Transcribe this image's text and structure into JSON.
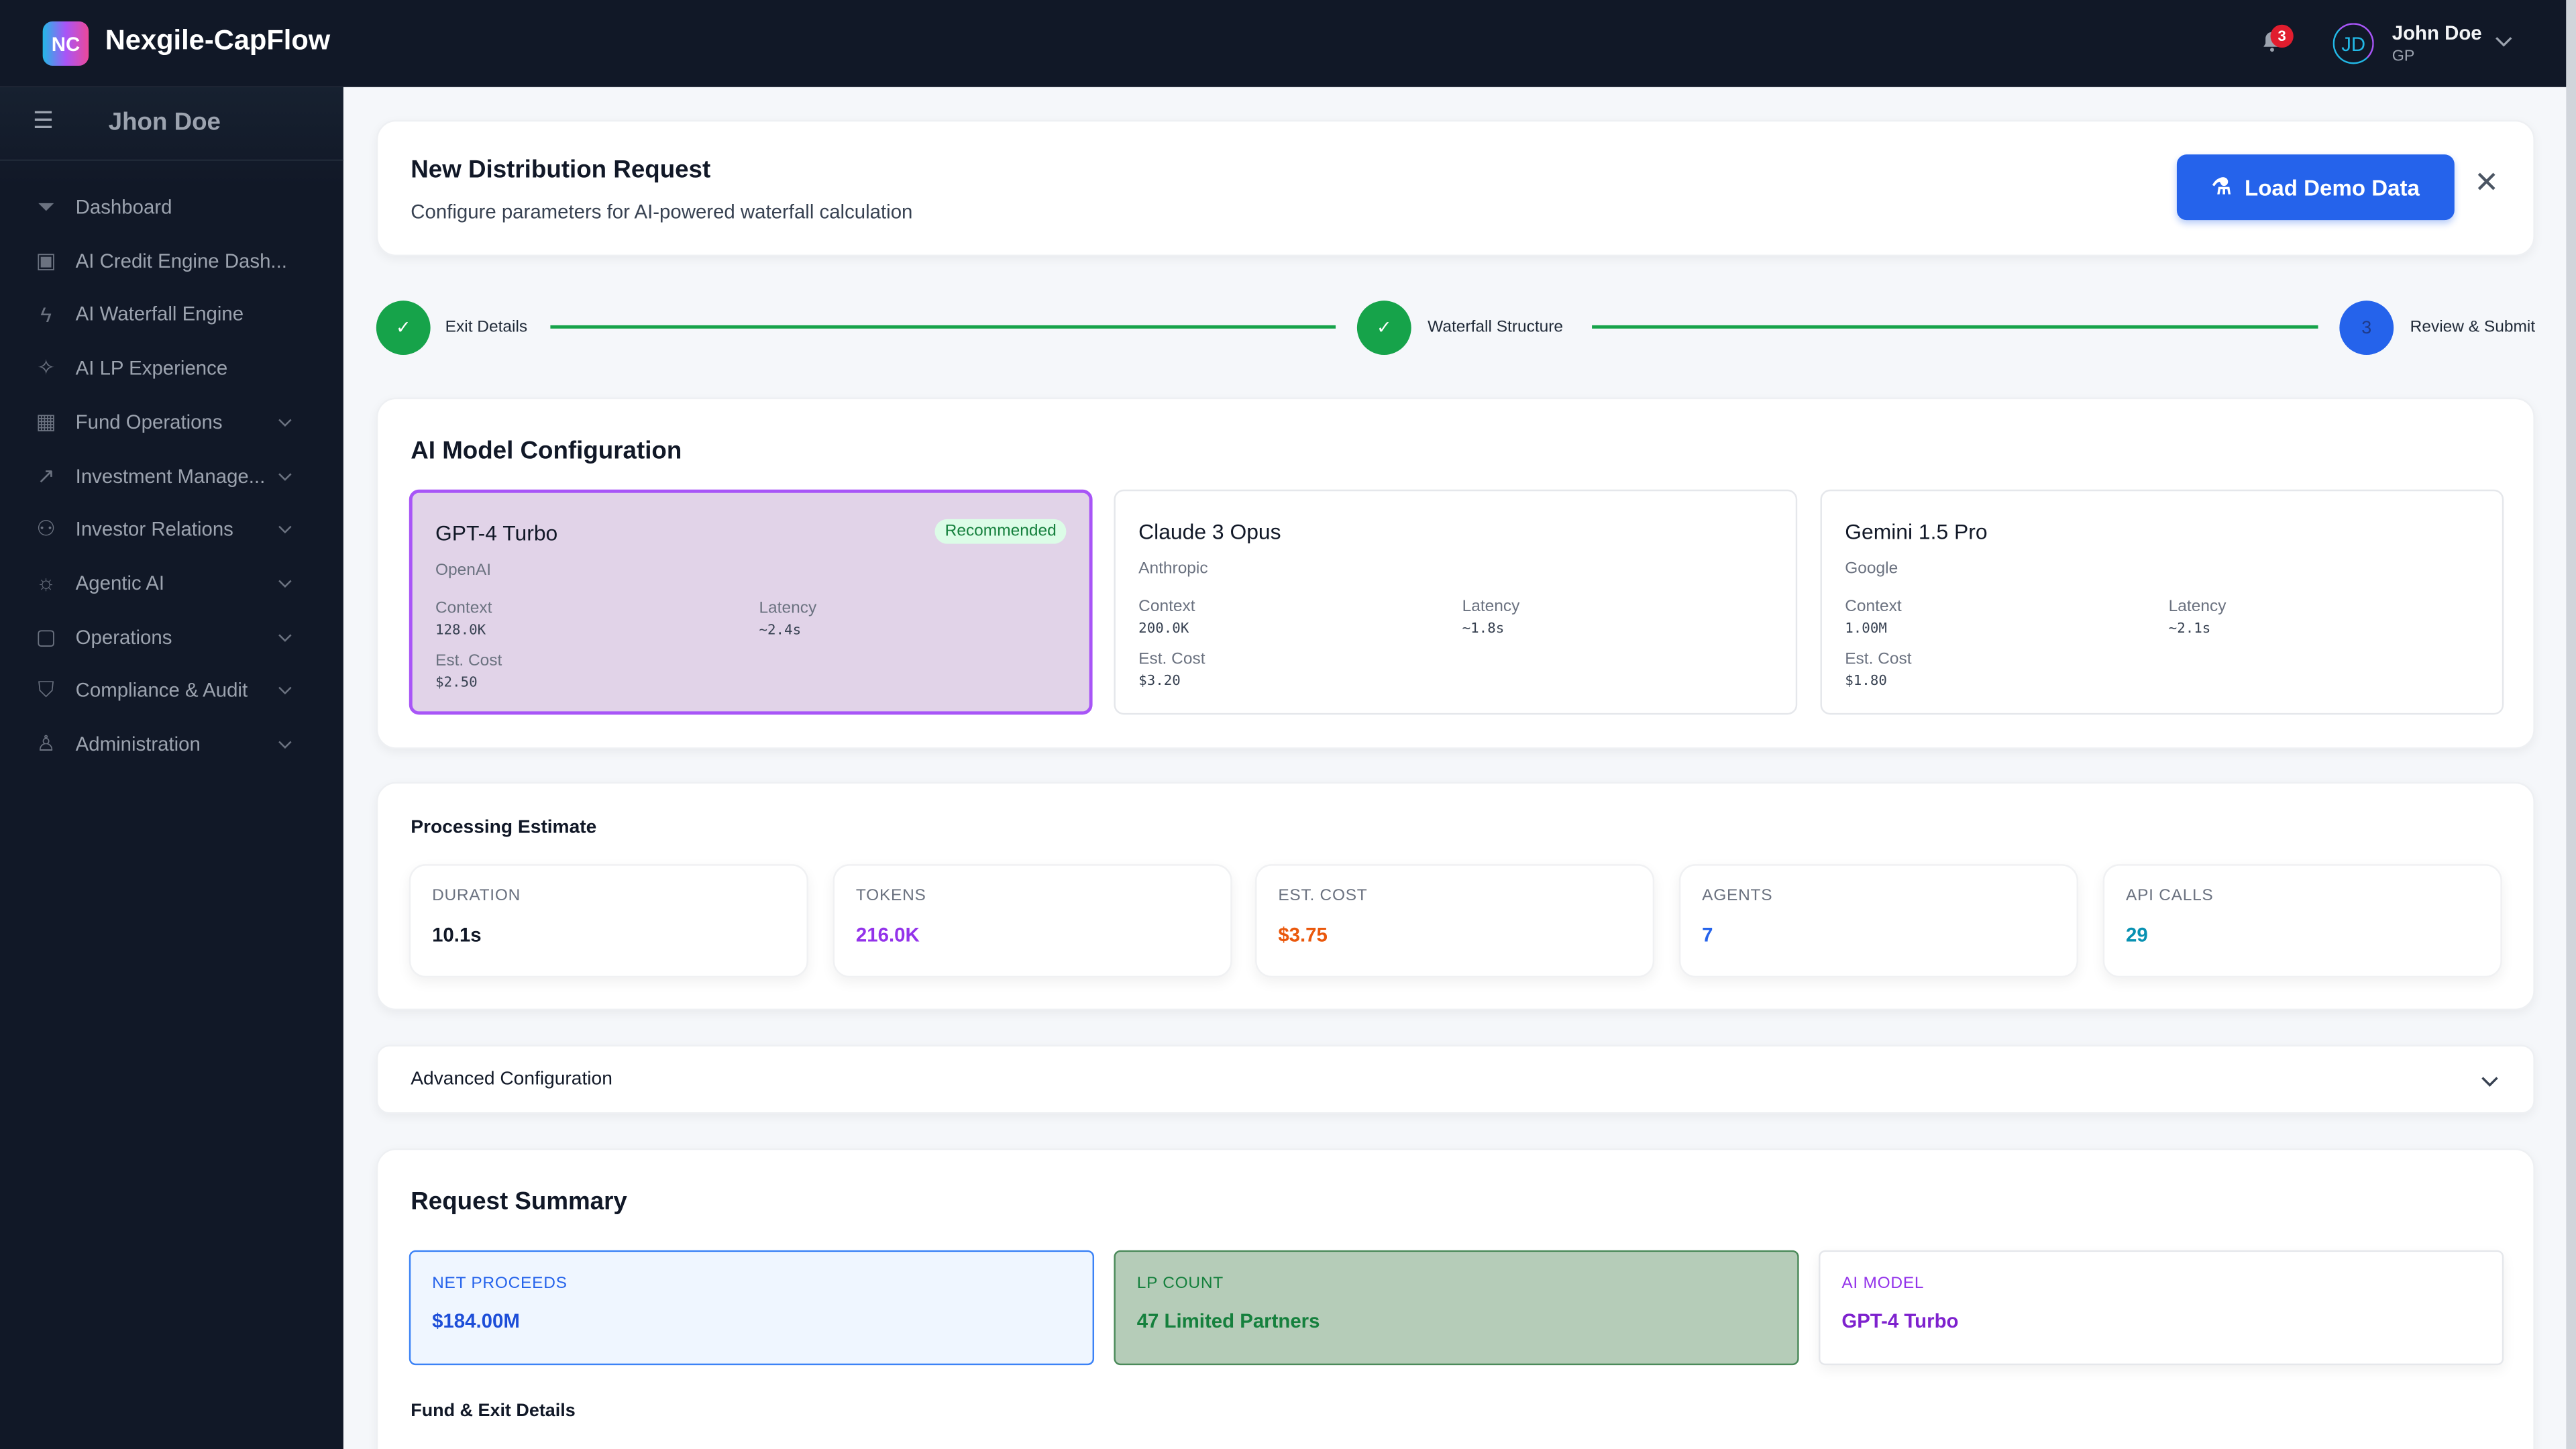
{
  "app": {
    "logo": "NC",
    "title": "Nexgile-CapFlow"
  },
  "topbar": {
    "notifications": "3",
    "avatar_initials": "JD",
    "user_name": "John Doe",
    "user_role": "GP"
  },
  "sidebar": {
    "user": "Jhon Doe",
    "items": [
      {
        "label": "Dashboard",
        "icon": "funnel-icon",
        "glyph": "⏷",
        "expandable": false
      },
      {
        "label": "AI Credit Engine Dash...",
        "icon": "cpu-icon",
        "glyph": "▣",
        "expandable": false
      },
      {
        "label": "AI Waterfall Engine",
        "icon": "bolt-icon",
        "glyph": "ϟ",
        "expandable": false
      },
      {
        "label": "AI LP Experience",
        "icon": "sparkles-icon",
        "glyph": "✧",
        "expandable": false
      },
      {
        "label": "Fund Operations",
        "icon": "calculator-icon",
        "glyph": "▦",
        "expandable": true
      },
      {
        "label": "Investment Manage...",
        "icon": "trending-up-icon",
        "glyph": "↗",
        "expandable": true
      },
      {
        "label": "Investor Relations",
        "icon": "users-icon",
        "glyph": "⚇",
        "expandable": true
      },
      {
        "label": "Agentic AI",
        "icon": "lightbulb-icon",
        "glyph": "☼",
        "expandable": true
      },
      {
        "label": "Operations",
        "icon": "folder-icon",
        "glyph": "▢",
        "expandable": true
      },
      {
        "label": "Compliance & Audit",
        "icon": "shield-check-icon",
        "glyph": "⛉",
        "expandable": true
      },
      {
        "label": "Administration",
        "icon": "user-group-icon",
        "glyph": "♙",
        "expandable": true
      }
    ]
  },
  "header": {
    "title": "New Distribution Request",
    "subtitle": "Configure parameters for AI-powered waterfall calculation",
    "load_demo": "Load Demo Data"
  },
  "stepper": [
    {
      "label": "Exit Details",
      "status": "complete",
      "mark": "✓"
    },
    {
      "label": "Waterfall Structure",
      "status": "complete",
      "mark": "✓"
    },
    {
      "label": "Review & Submit",
      "status": "current",
      "mark": "3"
    }
  ],
  "model_config": {
    "title": "AI Model Configuration",
    "context_label": "Context",
    "latency_label": "Latency",
    "cost_label": "Est. Cost",
    "models": [
      {
        "name": "GPT-4 Turbo",
        "provider": "OpenAI",
        "context": "128.0K",
        "latency": "~2.4s",
        "cost": "$2.50",
        "badge": "Recommended",
        "selected": true
      },
      {
        "name": "Claude 3 Opus",
        "provider": "Anthropic",
        "context": "200.0K",
        "latency": "~1.8s",
        "cost": "$3.20",
        "selected": false
      },
      {
        "name": "Gemini 1.5 Pro",
        "provider": "Google",
        "context": "1.00M",
        "latency": "~2.1s",
        "cost": "$1.80",
        "selected": false
      }
    ]
  },
  "estimate": {
    "title": "Processing Estimate",
    "stats": [
      {
        "label": "DURATION",
        "value": "10.1s",
        "color": "#111827"
      },
      {
        "label": "TOKENS",
        "value": "216.0K",
        "color": "#9333ea"
      },
      {
        "label": "EST. COST",
        "value": "$3.75",
        "color": "#ea580c"
      },
      {
        "label": "AGENTS",
        "value": "7",
        "color": "#2563eb"
      },
      {
        "label": "API CALLS",
        "value": "29",
        "color": "#0891b2"
      }
    ]
  },
  "advanced": {
    "title": "Advanced Configuration"
  },
  "summary": {
    "title": "Request Summary",
    "boxes": [
      {
        "label": "NET PROCEEDS",
        "value": "$184.00M"
      },
      {
        "label": "LP COUNT",
        "value": "47 Limited Partners"
      },
      {
        "label": "AI MODEL",
        "value": "GPT-4 Turbo"
      }
    ],
    "fund_exit_title": "Fund & Exit Details"
  }
}
